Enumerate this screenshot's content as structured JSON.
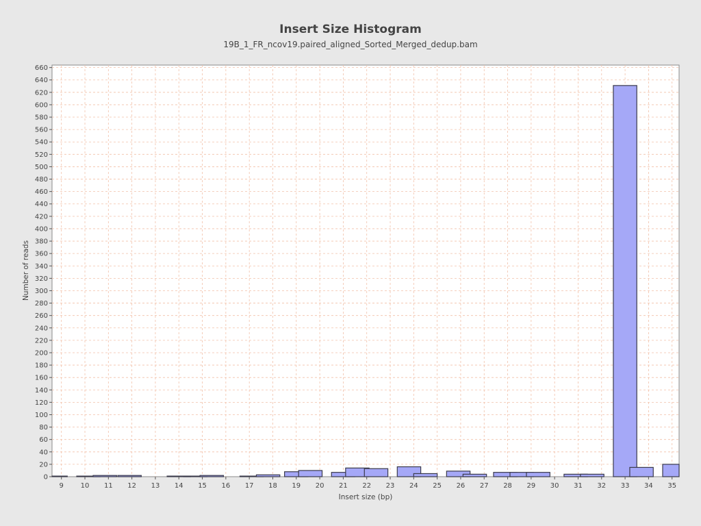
{
  "chart_data": {
    "type": "bar",
    "title": "Insert Size Histogram",
    "subtitle": "19B_1_FR_ncov19.paired_aligned_Sorted_Merged_dedup.bam",
    "xlabel": "Insert size (bp)",
    "ylabel": "Number of reads",
    "xlim": [
      8.6,
      35.3
    ],
    "ylim": [
      0,
      664
    ],
    "x_ticks": [
      "9",
      "10",
      "11",
      "12",
      "13",
      "14",
      "15",
      "16",
      "17",
      "18",
      "19",
      "20",
      "21",
      "22",
      "23",
      "24",
      "25",
      "26",
      "27",
      "28",
      "29",
      "30",
      "31",
      "32",
      "33",
      "34",
      "35"
    ],
    "y_ticks": [
      0,
      20,
      40,
      60,
      80,
      100,
      120,
      140,
      160,
      180,
      200,
      220,
      240,
      260,
      280,
      300,
      320,
      340,
      360,
      380,
      400,
      420,
      440,
      460,
      480,
      500,
      520,
      540,
      560,
      580,
      600,
      620,
      640,
      660
    ],
    "bar_width": 1.0,
    "bars": [
      {
        "x": 8.75,
        "y": 1
      },
      {
        "x": 10.15,
        "y": 1
      },
      {
        "x": 10.85,
        "y": 2
      },
      {
        "x": 11.9,
        "y": 2
      },
      {
        "x": 14.0,
        "y": 1
      },
      {
        "x": 14.7,
        "y": 1
      },
      {
        "x": 15.4,
        "y": 2
      },
      {
        "x": 17.1,
        "y": 1
      },
      {
        "x": 17.8,
        "y": 3
      },
      {
        "x": 19.0,
        "y": 8
      },
      {
        "x": 19.6,
        "y": 10
      },
      {
        "x": 21.0,
        "y": 7
      },
      {
        "x": 21.6,
        "y": 14
      },
      {
        "x": 22.4,
        "y": 13
      },
      {
        "x": 23.8,
        "y": 16
      },
      {
        "x": 24.5,
        "y": 5
      },
      {
        "x": 25.9,
        "y": 9
      },
      {
        "x": 26.6,
        "y": 4
      },
      {
        "x": 27.9,
        "y": 7
      },
      {
        "x": 28.6,
        "y": 7
      },
      {
        "x": 29.3,
        "y": 7
      },
      {
        "x": 30.9,
        "y": 4
      },
      {
        "x": 31.6,
        "y": 4
      },
      {
        "x": 33.0,
        "y": 631
      },
      {
        "x": 33.7,
        "y": 15
      },
      {
        "x": 35.1,
        "y": 20
      }
    ],
    "grid": true,
    "legend": "none",
    "colors": {
      "background": "#e8e8e8",
      "plot_background": "#ffffff",
      "grid": "#f2c0a8",
      "bar_fill": "#a5a8f7",
      "bar_stroke": "#3a3a4a",
      "axis": "#555555",
      "text": "#444444"
    }
  }
}
